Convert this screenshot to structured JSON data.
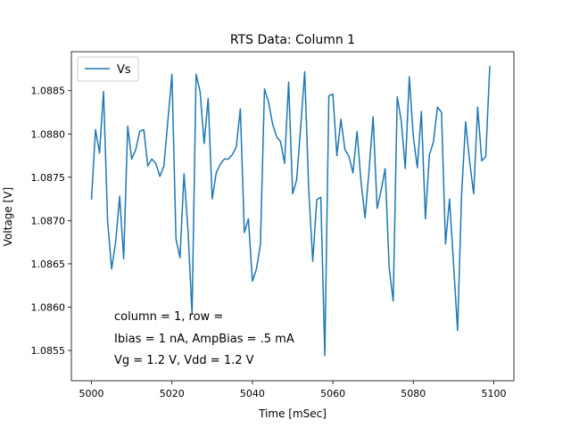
{
  "chart_data": {
    "type": "line",
    "title": "RTS Data: Column 1",
    "xlabel": "Time [mSec]",
    "ylabel": "Voltage [V]",
    "xlim": [
      4995,
      5105
    ],
    "ylim": [
      1.08515,
      1.08895
    ],
    "xticks": [
      5000,
      5020,
      5040,
      5060,
      5080,
      5100
    ],
    "yticks": [
      1.0855,
      1.086,
      1.0865,
      1.087,
      1.0875,
      1.088,
      1.0885
    ],
    "ytick_labels": [
      "1.0855",
      "1.0860",
      "1.0865",
      "1.0870",
      "1.0875",
      "1.0880",
      "1.0885"
    ],
    "grid": false,
    "legend": {
      "position": "upper-left",
      "entries": [
        "Vs"
      ]
    },
    "annotations": [
      "column = 1, row = ",
      "Ibias = 1 nA, AmpBias = .5 mA",
      "Vg = 1.2 V, Vdd = 1.2 V"
    ],
    "series": [
      {
        "name": "Vs",
        "color": "#1f77b4",
        "x": [
          5000,
          5001,
          5002,
          5003,
          5004,
          5005,
          5006,
          5007,
          5008,
          5009,
          5010,
          5011,
          5012,
          5013,
          5014,
          5015,
          5016,
          5017,
          5018,
          5019,
          5020,
          5021,
          5022,
          5023,
          5024,
          5025,
          5026,
          5027,
          5028,
          5029,
          5030,
          5031,
          5032,
          5033,
          5034,
          5035,
          5036,
          5037,
          5038,
          5039,
          5040,
          5041,
          5042,
          5043,
          5044,
          5045,
          5046,
          5047,
          5048,
          5049,
          5050,
          5051,
          5052,
          5053,
          5054,
          5055,
          5056,
          5057,
          5058,
          5059,
          5060,
          5061,
          5062,
          5063,
          5064,
          5065,
          5066,
          5067,
          5068,
          5069,
          5070,
          5071,
          5072,
          5073,
          5074,
          5075,
          5076,
          5077,
          5078,
          5079,
          5080,
          5081,
          5082,
          5083,
          5084,
          5085,
          5086,
          5087,
          5088,
          5089,
          5090,
          5091,
          5092,
          5093,
          5094,
          5095,
          5096,
          5097,
          5098,
          5099
        ],
        "y": [
          1.08725,
          1.08805,
          1.08778,
          1.08849,
          1.087,
          1.08644,
          1.08675,
          1.08728,
          1.08656,
          1.08809,
          1.08771,
          1.08782,
          1.08803,
          1.08805,
          1.08763,
          1.08771,
          1.08766,
          1.08751,
          1.08763,
          1.08816,
          1.08869,
          1.08679,
          1.08657,
          1.08754,
          1.08688,
          1.08592,
          1.08869,
          1.08849,
          1.08789,
          1.08841,
          1.08725,
          1.08755,
          1.08765,
          1.08771,
          1.08771,
          1.08776,
          1.08785,
          1.08829,
          1.08686,
          1.08702,
          1.0863,
          1.08644,
          1.08673,
          1.08852,
          1.08837,
          1.08812,
          1.08797,
          1.08791,
          1.08766,
          1.0886,
          1.08731,
          1.08747,
          1.08808,
          1.08872,
          1.08735,
          1.08653,
          1.08724,
          1.08727,
          1.08544,
          1.08844,
          1.08846,
          1.08775,
          1.08817,
          1.08782,
          1.08774,
          1.08755,
          1.08803,
          1.08745,
          1.08703,
          1.08758,
          1.0882,
          1.08714,
          1.08735,
          1.0876,
          1.08645,
          1.08607,
          1.08843,
          1.08815,
          1.0876,
          1.08866,
          1.08797,
          1.08761,
          1.08826,
          1.08702,
          1.08776,
          1.08791,
          1.08831,
          1.08825,
          1.08673,
          1.08725,
          1.0865,
          1.08573,
          1.0873,
          1.08814,
          1.08768,
          1.08731,
          1.08831,
          1.08769,
          1.08774,
          1.08878
        ]
      }
    ]
  }
}
